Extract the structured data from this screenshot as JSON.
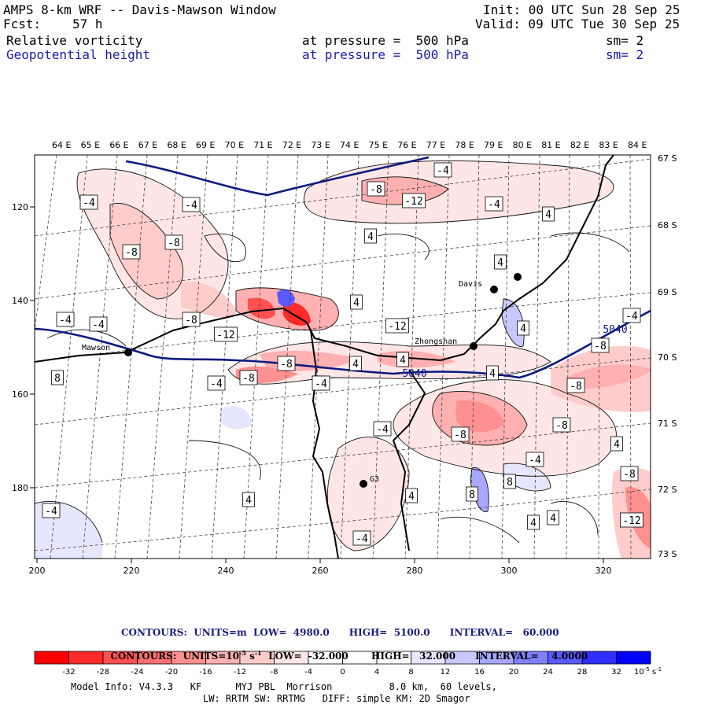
{
  "header": {
    "title": "AMPS 8-km WRF -- Davis-Mawson Window",
    "init": "Init: 00 UTC Sun 28 Sep 25",
    "fcst_label": "Fcst:",
    "fcst_value": "57 h",
    "valid": "Valid: 09 UTC Tue 30 Sep 25",
    "field1": "Relative vorticity",
    "field1_level": "at pressure =  500 hPa",
    "field1_sm": "sm= 2",
    "field2": "Geopotential height",
    "field2_level": "at pressure =  500 hPa",
    "field2_sm": "sm= 2"
  },
  "axes": {
    "lon_labels": [
      "64 E",
      "65 E",
      "66 E",
      "67 E",
      "68 E",
      "69 E",
      "70 E",
      "71 E",
      "72 E",
      "73 E",
      "74 E",
      "75 E",
      "76 E",
      "77 E",
      "78 E",
      "79 E",
      "80 E",
      "81 E",
      "82 E",
      "83 E",
      "84 E"
    ],
    "lat_labels": [
      "67 S",
      "68 S",
      "69 S",
      "70 S",
      "71 S",
      "72 S",
      "73 S"
    ],
    "x_ticks": [
      "200",
      "220",
      "240",
      "260",
      "280",
      "300",
      "320"
    ],
    "y_ticks": [
      "120",
      "140",
      "160",
      "180"
    ]
  },
  "stations": [
    "Davis",
    "Zhongshan",
    "Mawson",
    "G3"
  ],
  "contour_labels": [
    "-4",
    "-4",
    "-8",
    "-8",
    "-12",
    "-4",
    "-4",
    "-8",
    "4",
    "4",
    "4",
    "-4",
    "-4",
    "-8",
    "-12",
    "-8",
    "4",
    "4",
    "-4",
    "-8",
    "4",
    "4",
    "-12",
    "-8",
    "-4",
    "-8",
    "4",
    "-8",
    "-4",
    "-4",
    "4",
    "8",
    "8",
    "4",
    "4",
    "-4",
    "-8",
    "-12",
    "4",
    "4",
    "-8",
    "-4",
    "4",
    "5040",
    "8",
    "-4",
    "5040"
  ],
  "legend": {
    "contours1": "CONTOURS:  UNITS=m  LOW=  4980.0      HIGH=  5100.0      INTERVAL=   60.000",
    "contours2_a": "CONTOURS:  UNITS=10",
    "contours2_b": "-5",
    "contours2_c": " s",
    "contours2_d": "-1",
    "contours2_e": "  LOW=  -32.000       HIGH=   32.000      INTERVAL=    4.0000",
    "colorbar_values": [
      "-32",
      "-28",
      "-24",
      "-20",
      "-16",
      "-12",
      "-8",
      "-4",
      "0",
      "4",
      "8",
      "12",
      "16",
      "20",
      "24",
      "28",
      "32"
    ],
    "colorbar_colors": [
      "#ff0000",
      "#ff2a2a",
      "#ff5050",
      "#ff7070",
      "#ff9090",
      "#ffb0b0",
      "#ffcccc",
      "#ffe6e6",
      "#ffffff",
      "#ffffff",
      "#e6e6ff",
      "#c8c8ff",
      "#a8a8ff",
      "#8080ff",
      "#5a5aff",
      "#2e2eff",
      "#0000ff"
    ],
    "units_a": "10",
    "units_b": "-5",
    "units_c": " s",
    "units_d": "-1"
  },
  "footer": {
    "line1": "Model Info: V4.3.3   KF      MYJ PBL  Morrison          8.0 km,  60 levels,",
    "line2": "LW: RRTM SW: RRTMG   DIFF: simple KM: 2D Smagor"
  }
}
